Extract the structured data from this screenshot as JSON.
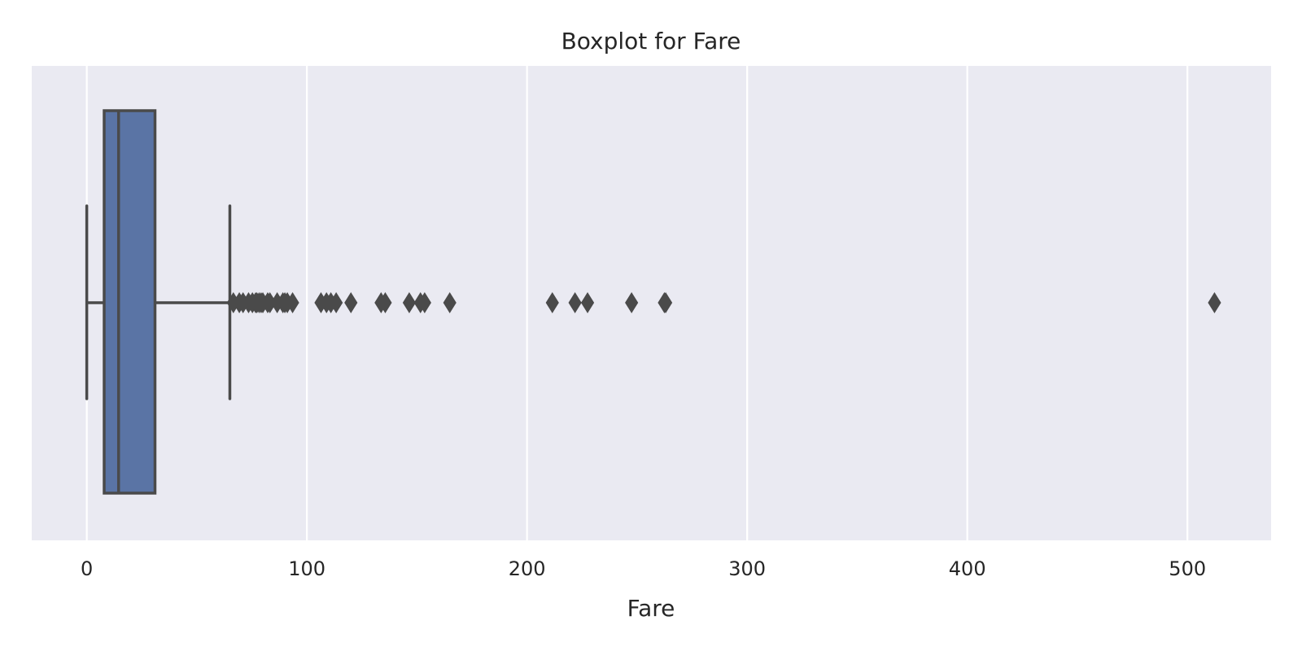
{
  "chart_data": {
    "type": "box",
    "title": "Boxplot for Fare",
    "xlabel": "Fare",
    "ylabel": "",
    "orientation": "horizontal",
    "xlim": [
      -25,
      538
    ],
    "xticks": [
      0,
      100,
      200,
      300,
      400,
      500
    ],
    "grid": true,
    "legend": "none",
    "box": {
      "whisker_low": 0,
      "q1": 7.9,
      "median": 14.45,
      "q3": 31,
      "whisker_high": 65
    },
    "outliers": [
      66.6,
      69.3,
      71,
      73.5,
      75.25,
      76.7,
      77.3,
      78.3,
      79.2,
      80,
      82.2,
      83.2,
      86.5,
      89.1,
      90,
      91.1,
      93.5,
      106.4,
      108.9,
      110.9,
      113.3,
      120,
      133.7,
      135.6,
      146.5,
      151.6,
      153.5,
      164.9,
      211.5,
      221.8,
      227.5,
      247.5,
      262.4,
      263,
      512.3
    ],
    "colors": {
      "background": "#EAEAF2",
      "grid": "#FFFFFF",
      "box_fill": "#5A74A5",
      "line": "#4A4A4A"
    }
  }
}
